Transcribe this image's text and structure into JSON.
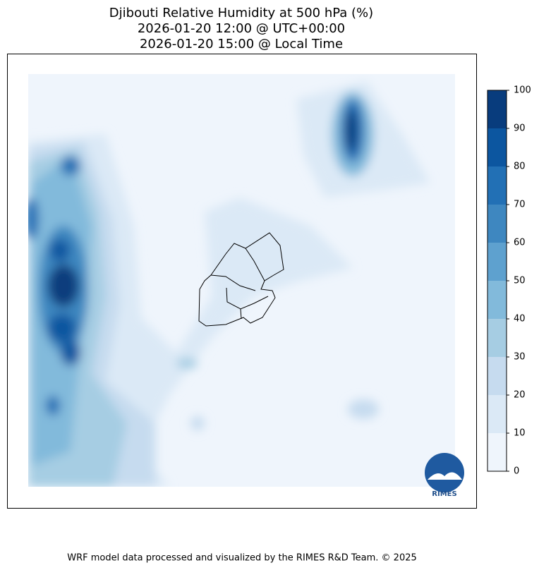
{
  "title": {
    "lines": [
      "Djibouti Relative Humidity at 500 hPa (%)",
      "2026-01-20 12:00 @ UTC+00:00",
      "2026-01-20 15:00 @ Local Time"
    ]
  },
  "colorbar": {
    "ticks": [
      0,
      10,
      20,
      30,
      40,
      50,
      60,
      70,
      80,
      90,
      100
    ],
    "colors": [
      "#eff5fc",
      "#dbe9f6",
      "#c6dbef",
      "#a6cde3",
      "#82badb",
      "#5ea1cf",
      "#3e87c0",
      "#2270b5",
      "#0c56a0",
      "#083c7d"
    ]
  },
  "logo": {
    "label": "RIMES"
  },
  "footer": "WRF model data processed and visualized by the RIMES R&D Team. © 2025"
}
